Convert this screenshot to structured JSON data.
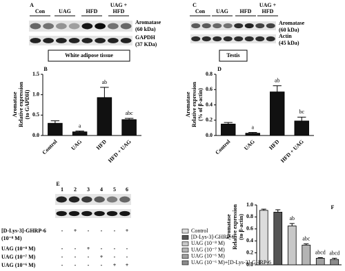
{
  "blots": [
    {
      "panel_label": "A",
      "lanes": [
        [
          "Con"
        ],
        [
          "UAG"
        ],
        [
          "HFD"
        ],
        [
          "UAG +",
          "HFD"
        ]
      ],
      "bands": [
        [
          "Aromatase",
          "(60 kDa)"
        ],
        [
          "GAPDH",
          "(37 KDa)"
        ]
      ],
      "tissue": "White adipose tissue"
    },
    {
      "panel_label": "C",
      "lanes": [
        [
          "Con"
        ],
        [
          "UAG"
        ],
        [
          "HFD"
        ],
        [
          "UAG +",
          "HFD"
        ]
      ],
      "bands": [
        [
          "Aromatase",
          "(60 kDa)"
        ],
        [
          "Actin",
          "(45 kDa)"
        ]
      ],
      "tissue": "Testis"
    },
    {
      "panel_label": "E",
      "lanes": [
        [
          "1"
        ],
        [
          "2"
        ],
        [
          "3"
        ],
        [
          "4"
        ],
        [
          "5"
        ],
        [
          "6"
        ]
      ],
      "treatments": [
        {
          "label": [
            "[D-Lys-3]-GHRP-6",
            "(10⁻⁸ M)"
          ],
          "signs": [
            "-",
            "+",
            "-",
            "-",
            "-",
            "+"
          ]
        },
        {
          "label": [
            "UAG (10⁻⁸ M)"
          ],
          "signs": [
            "-",
            "-",
            "+",
            "-",
            "-",
            "-"
          ]
        },
        {
          "label": [
            "UAG (10⁻⁷ M)"
          ],
          "signs": [
            "-",
            "-",
            "-",
            "+",
            "-",
            "-"
          ]
        },
        {
          "label": [
            "UAG (10⁻⁶ M)"
          ],
          "signs": [
            "-",
            "-",
            "-",
            "-",
            "+",
            "+"
          ]
        }
      ]
    }
  ],
  "chart_data": [
    {
      "type": "bar",
      "panel_label": "B",
      "y_label": [
        "Aromatase",
        "Relative expression",
        "(to GAPDH)"
      ],
      "categories": [
        "Control",
        "UAG",
        "HFD",
        "HFD + UAG"
      ],
      "values": [
        0.3,
        0.09,
        0.93,
        0.39
      ],
      "errors": [
        0.06,
        0.02,
        0.25,
        0.03
      ],
      "annotations": [
        null,
        "a",
        "ab",
        "abc"
      ],
      "color": "#111111",
      "ylim": [
        0,
        1.5
      ],
      "yticks": [
        {
          "value": 0,
          "label": "0.0"
        },
        0.5,
        {
          "value": 1,
          "label": "1.0"
        },
        1.5
      ]
    },
    {
      "type": "bar",
      "panel_label": "D",
      "y_label": [
        "Aromatase",
        "Relative expression",
        "(% of β-actin)"
      ],
      "categories": [
        "Control",
        "UAG",
        "HFD",
        "HFD + UAG"
      ],
      "values": [
        0.15,
        0.03,
        0.57,
        0.19
      ],
      "errors": [
        0.02,
        0.01,
        0.08,
        0.05
      ],
      "annotations": [
        null,
        "a",
        "ab",
        "bc"
      ],
      "color": "#111111",
      "ylim": [
        0,
        0.8
      ],
      "yticks": [
        {
          "value": 0,
          "label": "0.0"
        },
        0.2,
        0.4,
        0.6,
        0.8
      ]
    },
    {
      "type": "bar",
      "panel_label": "F",
      "y_label": [
        "Aromatase",
        "Relative expression",
        "(to β-actin)"
      ],
      "legend": "left",
      "series": [
        {
          "name": "Control",
          "color": "#dcdcdc",
          "values": [
            0.91
          ],
          "errors": [
            0.02
          ]
        },
        {
          "name": "[D-Lys-3]-GHRP-6",
          "color": "#555555",
          "values": [
            0.88
          ],
          "errors": [
            0.04
          ]
        },
        {
          "name": "UAG (10⁻⁸ M)",
          "color": "#c8c8c8",
          "values": [
            0.65
          ],
          "errors": [
            0.04
          ],
          "annotation": "ab"
        },
        {
          "name": "UAG (10⁻⁷ M)",
          "color": "#b4b4b4",
          "values": [
            0.33
          ],
          "errors": [
            0.02
          ],
          "annotation": "abc"
        },
        {
          "name": "UAG (10⁻⁶ M)",
          "color": "#a0a0a0",
          "values": [
            0.11
          ],
          "errors": [
            0.01
          ],
          "annotation": "abcd"
        },
        {
          "name": "UAG (10⁻⁶ M)+[D-Lys-3]-GHRP-6",
          "color": "#8c8c8c",
          "values": [
            0.09
          ],
          "errors": [
            0.02
          ],
          "annotation": "abcd"
        }
      ],
      "ylim": [
        0,
        1.0
      ],
      "yticks": [
        {
          "value": 0,
          "label": "0.0"
        },
        0.2,
        0.4,
        0.6,
        0.8,
        {
          "value": 1,
          "label": "1.0"
        }
      ]
    }
  ]
}
